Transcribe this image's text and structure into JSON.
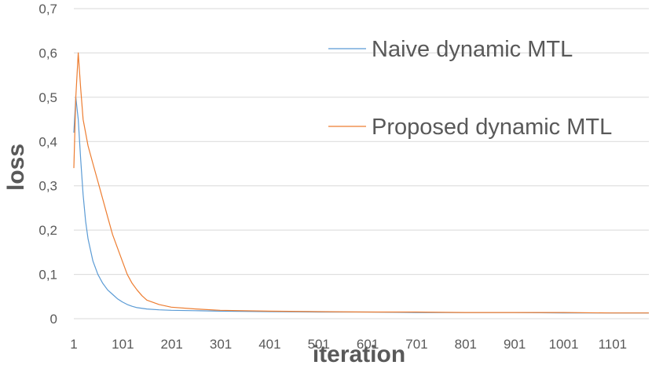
{
  "chart_data": {
    "type": "line",
    "xlabel": "iteration",
    "ylabel": "loss",
    "ylim": [
      0,
      0.7
    ],
    "xlim": [
      1,
      1175
    ],
    "y_ticks": [
      0,
      0.1,
      0.2,
      0.3,
      0.4,
      0.5,
      0.6,
      0.7
    ],
    "y_tick_labels": [
      "0",
      "0,1",
      "0,2",
      "0,3",
      "0,4",
      "0,5",
      "0,6",
      "0,7"
    ],
    "x_ticks": [
      1,
      101,
      201,
      301,
      401,
      501,
      601,
      701,
      801,
      901,
      1001,
      1101
    ],
    "x_tick_labels": [
      "1",
      "101",
      "201",
      "301",
      "401",
      "501",
      "601",
      "701",
      "801",
      "901",
      "1001",
      "1101"
    ],
    "grid": "horizontal",
    "legend_position": "top-right",
    "series": [
      {
        "name": "Naive dynamic MTL",
        "color": "#5b9bd5",
        "x": [
          1,
          5,
          10,
          15,
          20,
          25,
          30,
          40,
          50,
          60,
          70,
          80,
          90,
          100,
          110,
          120,
          130,
          150,
          175,
          200,
          250,
          300,
          400,
          500,
          600,
          700,
          800,
          900,
          1000,
          1100,
          1175
        ],
        "y": [
          0.42,
          0.5,
          0.45,
          0.36,
          0.28,
          0.22,
          0.18,
          0.13,
          0.1,
          0.08,
          0.065,
          0.055,
          0.045,
          0.038,
          0.032,
          0.028,
          0.025,
          0.022,
          0.02,
          0.019,
          0.018,
          0.017,
          0.016,
          0.015,
          0.015,
          0.014,
          0.014,
          0.014,
          0.013,
          0.013,
          0.013
        ]
      },
      {
        "name": "Proposed dynamic MTL",
        "color": "#ed7d31",
        "x": [
          1,
          5,
          10,
          15,
          20,
          30,
          40,
          50,
          60,
          70,
          80,
          90,
          100,
          110,
          120,
          130,
          140,
          150,
          175,
          200,
          250,
          300,
          400,
          500,
          600,
          700,
          800,
          900,
          1000,
          1100,
          1175
        ],
        "y": [
          0.34,
          0.5,
          0.6,
          0.52,
          0.45,
          0.39,
          0.35,
          0.31,
          0.27,
          0.23,
          0.19,
          0.16,
          0.13,
          0.1,
          0.08,
          0.065,
          0.052,
          0.042,
          0.032,
          0.026,
          0.022,
          0.019,
          0.017,
          0.016,
          0.015,
          0.015,
          0.014,
          0.014,
          0.014,
          0.013,
          0.013
        ]
      }
    ]
  }
}
